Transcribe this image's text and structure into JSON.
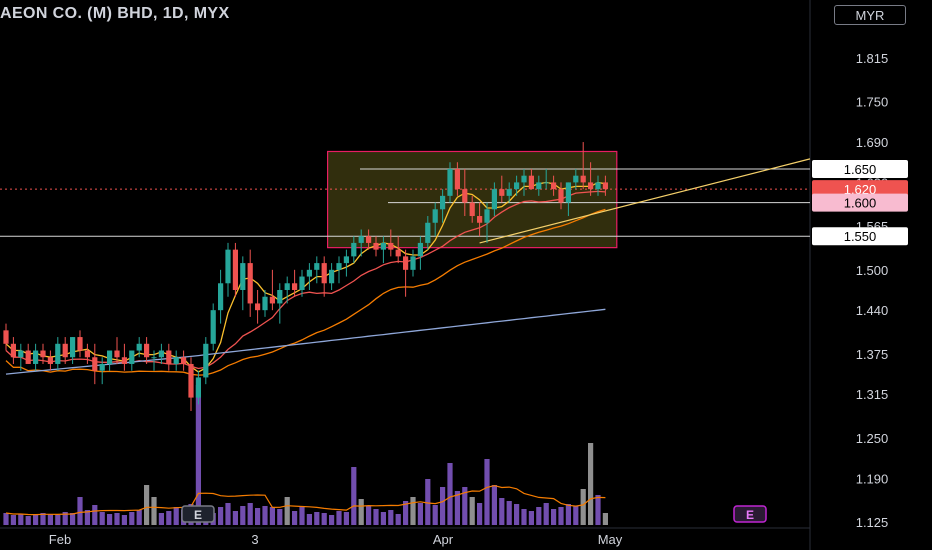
{
  "header": {
    "title": "AEON CO. (M) BHD, 1D, MYX",
    "currency": "MYR"
  },
  "colors": {
    "up": "#26a69a",
    "down": "#ef5350",
    "vol_up": "#7e57c2",
    "vol_neutral": "#9e9e9e",
    "ma_short": "#fbc02d",
    "ma_mid": "#ef5350",
    "ma_long": "#f57c00",
    "ma_200": "#8fa7d9",
    "box_border": "#e91e63",
    "box_fill": "#3d3a10",
    "trendline": "#f5d06a"
  },
  "chart_data": {
    "type": "candlestick",
    "x_ticks": [
      "Feb",
      "3",
      "Apr",
      "May"
    ],
    "y_ticks": [
      "1.815",
      "1.750",
      "1.690",
      "1.630",
      "1.565",
      "1.500",
      "1.440",
      "1.375",
      "1.315",
      "1.250",
      "1.190",
      "1.125"
    ],
    "ylim": [
      1.12,
      1.86
    ],
    "price_labels": [
      {
        "text": "1.650",
        "value": 1.65,
        "style": "white"
      },
      {
        "text": "1.620",
        "value": 1.62,
        "style": "current"
      },
      {
        "text": "1.600",
        "value": 1.6,
        "style": "pink"
      },
      {
        "text": "1.550",
        "value": 1.55,
        "style": "white"
      }
    ],
    "horizontal_lines": [
      1.65,
      1.6,
      1.55,
      1.62
    ],
    "box": {
      "from_bar": 44,
      "to_bar": 82,
      "top": 1.676,
      "bottom": 1.533
    },
    "trendline": {
      "from": [
        64,
        1.54
      ],
      "to": [
        95,
        1.665
      ]
    },
    "event_markers": [
      "E",
      "E"
    ],
    "candles": [
      [
        1.41,
        1.42,
        1.38,
        1.39
      ],
      [
        1.39,
        1.4,
        1.36,
        1.37
      ],
      [
        1.37,
        1.39,
        1.35,
        1.38
      ],
      [
        1.38,
        1.39,
        1.36,
        1.36
      ],
      [
        1.36,
        1.39,
        1.35,
        1.38
      ],
      [
        1.38,
        1.39,
        1.36,
        1.37
      ],
      [
        1.37,
        1.38,
        1.35,
        1.36
      ],
      [
        1.36,
        1.4,
        1.35,
        1.39
      ],
      [
        1.39,
        1.4,
        1.36,
        1.37
      ],
      [
        1.37,
        1.4,
        1.36,
        1.4
      ],
      [
        1.4,
        1.41,
        1.37,
        1.38
      ],
      [
        1.38,
        1.39,
        1.36,
        1.37
      ],
      [
        1.37,
        1.39,
        1.33,
        1.35
      ],
      [
        1.35,
        1.37,
        1.33,
        1.36
      ],
      [
        1.36,
        1.38,
        1.35,
        1.38
      ],
      [
        1.38,
        1.4,
        1.36,
        1.37
      ],
      [
        1.37,
        1.39,
        1.35,
        1.36
      ],
      [
        1.36,
        1.38,
        1.35,
        1.38
      ],
      [
        1.38,
        1.4,
        1.37,
        1.39
      ],
      [
        1.39,
        1.4,
        1.36,
        1.37
      ],
      [
        1.37,
        1.38,
        1.35,
        1.37
      ],
      [
        1.37,
        1.39,
        1.36,
        1.38
      ],
      [
        1.38,
        1.39,
        1.35,
        1.36
      ],
      [
        1.36,
        1.38,
        1.35,
        1.37
      ],
      [
        1.37,
        1.38,
        1.35,
        1.36
      ],
      [
        1.36,
        1.37,
        1.29,
        1.31
      ],
      [
        1.31,
        1.35,
        1.3,
        1.34
      ],
      [
        1.34,
        1.4,
        1.33,
        1.39
      ],
      [
        1.39,
        1.45,
        1.38,
        1.44
      ],
      [
        1.44,
        1.5,
        1.42,
        1.48
      ],
      [
        1.48,
        1.54,
        1.46,
        1.53
      ],
      [
        1.53,
        1.54,
        1.46,
        1.47
      ],
      [
        1.47,
        1.52,
        1.44,
        1.51
      ],
      [
        1.51,
        1.53,
        1.43,
        1.45
      ],
      [
        1.45,
        1.47,
        1.42,
        1.44
      ],
      [
        1.44,
        1.47,
        1.43,
        1.46
      ],
      [
        1.46,
        1.5,
        1.44,
        1.45
      ],
      [
        1.45,
        1.48,
        1.42,
        1.47
      ],
      [
        1.47,
        1.49,
        1.45,
        1.48
      ],
      [
        1.48,
        1.5,
        1.46,
        1.47
      ],
      [
        1.47,
        1.5,
        1.46,
        1.49
      ],
      [
        1.49,
        1.51,
        1.47,
        1.5
      ],
      [
        1.5,
        1.52,
        1.48,
        1.51
      ],
      [
        1.51,
        1.52,
        1.46,
        1.48
      ],
      [
        1.48,
        1.51,
        1.47,
        1.5
      ],
      [
        1.5,
        1.52,
        1.48,
        1.51
      ],
      [
        1.51,
        1.53,
        1.49,
        1.52
      ],
      [
        1.52,
        1.55,
        1.51,
        1.54
      ],
      [
        1.54,
        1.56,
        1.52,
        1.55
      ],
      [
        1.55,
        1.56,
        1.53,
        1.54
      ],
      [
        1.54,
        1.55,
        1.52,
        1.53
      ],
      [
        1.53,
        1.55,
        1.51,
        1.54
      ],
      [
        1.54,
        1.56,
        1.52,
        1.53
      ],
      [
        1.53,
        1.55,
        1.51,
        1.52
      ],
      [
        1.52,
        1.53,
        1.46,
        1.5
      ],
      [
        1.5,
        1.53,
        1.49,
        1.52
      ],
      [
        1.52,
        1.55,
        1.5,
        1.54
      ],
      [
        1.54,
        1.58,
        1.53,
        1.57
      ],
      [
        1.57,
        1.6,
        1.55,
        1.59
      ],
      [
        1.59,
        1.62,
        1.57,
        1.61
      ],
      [
        1.61,
        1.66,
        1.6,
        1.65
      ],
      [
        1.65,
        1.66,
        1.61,
        1.62
      ],
      [
        1.62,
        1.65,
        1.58,
        1.6
      ],
      [
        1.6,
        1.61,
        1.57,
        1.58
      ],
      [
        1.58,
        1.6,
        1.55,
        1.57
      ],
      [
        1.57,
        1.6,
        1.54,
        1.59
      ],
      [
        1.59,
        1.63,
        1.58,
        1.62
      ],
      [
        1.62,
        1.64,
        1.6,
        1.61
      ],
      [
        1.61,
        1.63,
        1.6,
        1.62
      ],
      [
        1.62,
        1.64,
        1.61,
        1.63
      ],
      [
        1.63,
        1.65,
        1.61,
        1.64
      ],
      [
        1.64,
        1.65,
        1.62,
        1.62
      ],
      [
        1.62,
        1.64,
        1.61,
        1.63
      ],
      [
        1.63,
        1.65,
        1.62,
        1.63
      ],
      [
        1.63,
        1.64,
        1.61,
        1.62
      ],
      [
        1.62,
        1.63,
        1.59,
        1.6
      ],
      [
        1.6,
        1.63,
        1.58,
        1.63
      ],
      [
        1.63,
        1.65,
        1.62,
        1.64
      ],
      [
        1.64,
        1.69,
        1.62,
        1.63
      ],
      [
        1.63,
        1.66,
        1.61,
        1.62
      ],
      [
        1.62,
        1.64,
        1.61,
        1.63
      ],
      [
        1.63,
        1.64,
        1.61,
        1.62
      ]
    ],
    "volume": [
      [
        0.012,
        "vol_up"
      ],
      [
        0.01,
        "vol_up"
      ],
      [
        0.011,
        "vol_up"
      ],
      [
        0.009,
        "vol_up"
      ],
      [
        0.01,
        "vol_up"
      ],
      [
        0.012,
        "vol_up"
      ],
      [
        0.011,
        "vol_up"
      ],
      [
        0.01,
        "vol_up"
      ],
      [
        0.013,
        "vol_up"
      ],
      [
        0.012,
        "vol_up"
      ],
      [
        0.028,
        "vol_up"
      ],
      [
        0.015,
        "vol_up"
      ],
      [
        0.02,
        "vol_up"
      ],
      [
        0.013,
        "vol_up"
      ],
      [
        0.011,
        "vol_up"
      ],
      [
        0.012,
        "vol_up"
      ],
      [
        0.01,
        "vol_up"
      ],
      [
        0.013,
        "vol_up"
      ],
      [
        0.015,
        "vol_up"
      ],
      [
        0.04,
        "vol_neutral"
      ],
      [
        0.028,
        "vol_neutral"
      ],
      [
        0.012,
        "vol_up"
      ],
      [
        0.014,
        "vol_up"
      ],
      [
        0.018,
        "vol_up"
      ],
      [
        0.015,
        "vol_up"
      ],
      [
        0.021,
        "vol_up"
      ],
      [
        0.14,
        "vol_up"
      ],
      [
        0.015,
        "vol_up"
      ],
      [
        0.012,
        "vol_up"
      ],
      [
        0.018,
        "vol_up"
      ],
      [
        0.022,
        "vol_up"
      ],
      [
        0.014,
        "vol_up"
      ],
      [
        0.019,
        "vol_up"
      ],
      [
        0.022,
        "vol_up"
      ],
      [
        0.017,
        "vol_up"
      ],
      [
        0.019,
        "vol_up"
      ],
      [
        0.018,
        "vol_up"
      ],
      [
        0.016,
        "vol_up"
      ],
      [
        0.028,
        "vol_neutral"
      ],
      [
        0.014,
        "vol_up"
      ],
      [
        0.018,
        "vol_up"
      ],
      [
        0.011,
        "vol_up"
      ],
      [
        0.013,
        "vol_up"
      ],
      [
        0.012,
        "vol_up"
      ],
      [
        0.01,
        "vol_up"
      ],
      [
        0.014,
        "vol_up"
      ],
      [
        0.013,
        "vol_up"
      ],
      [
        0.058,
        "vol_up"
      ],
      [
        0.026,
        "vol_neutral"
      ],
      [
        0.019,
        "vol_up"
      ],
      [
        0.016,
        "vol_up"
      ],
      [
        0.013,
        "vol_up"
      ],
      [
        0.015,
        "vol_up"
      ],
      [
        0.011,
        "vol_up"
      ],
      [
        0.024,
        "vol_up"
      ],
      [
        0.028,
        "vol_neutral"
      ],
      [
        0.022,
        "vol_up"
      ],
      [
        0.046,
        "vol_up"
      ],
      [
        0.02,
        "vol_up"
      ],
      [
        0.038,
        "vol_up"
      ],
      [
        0.062,
        "vol_up"
      ],
      [
        0.034,
        "vol_up"
      ],
      [
        0.038,
        "vol_up"
      ],
      [
        0.028,
        "vol_neutral"
      ],
      [
        0.022,
        "vol_up"
      ],
      [
        0.066,
        "vol_up"
      ],
      [
        0.04,
        "vol_up"
      ],
      [
        0.027,
        "vol_up"
      ],
      [
        0.024,
        "vol_up"
      ],
      [
        0.021,
        "vol_up"
      ],
      [
        0.016,
        "vol_up"
      ],
      [
        0.014,
        "vol_up"
      ],
      [
        0.018,
        "vol_up"
      ],
      [
        0.022,
        "vol_up"
      ],
      [
        0.016,
        "vol_up"
      ],
      [
        0.018,
        "vol_up"
      ],
      [
        0.021,
        "vol_up"
      ],
      [
        0.019,
        "vol_up"
      ],
      [
        0.036,
        "vol_neutral"
      ],
      [
        0.082,
        "vol_neutral"
      ],
      [
        0.03,
        "vol_up"
      ],
      [
        0.012,
        "vol_neutral"
      ]
    ]
  }
}
